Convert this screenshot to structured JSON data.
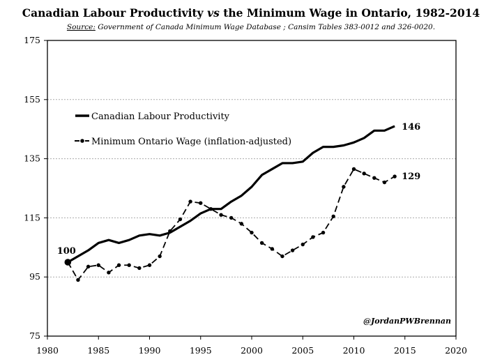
{
  "chart_data": {
    "type": "line",
    "title_parts": {
      "a": "Canadian Labour Productivity ",
      "vs": "vs",
      "b": " the Minimum Wage in Ontario, 1982-2014"
    },
    "subtitle_parts": {
      "source_label": "Source:",
      "text": " Government of Canada Minimum Wage Database ; Cansim Tables  383-0012 and  326-0020."
    },
    "xlim": [
      1980,
      2020
    ],
    "ylim": [
      75,
      175
    ],
    "x_ticks": [
      1980,
      1985,
      1990,
      1995,
      2000,
      2005,
      2010,
      2015,
      2020
    ],
    "y_ticks": [
      75,
      95,
      115,
      135,
      155,
      175
    ],
    "grid": "horizontal-dashed",
    "legend_placement": "upper-left",
    "series": [
      {
        "name": "Canadian Labour Productivity",
        "style": "solid",
        "color": "#000000",
        "x": [
          1982,
          1983,
          1984,
          1985,
          1986,
          1987,
          1988,
          1989,
          1990,
          1991,
          1992,
          1993,
          1994,
          1995,
          1996,
          1997,
          1998,
          1999,
          2000,
          2001,
          2002,
          2003,
          2004,
          2005,
          2006,
          2007,
          2008,
          2009,
          2010,
          2011,
          2012,
          2013,
          2014
        ],
        "values": [
          100,
          102,
          104,
          106.5,
          107.5,
          106.5,
          107.5,
          109,
          109.5,
          109,
          110,
          112,
          114,
          116.5,
          118,
          118,
          120.5,
          122.5,
          125.5,
          129.5,
          131.5,
          133.5,
          133.5,
          134,
          137,
          139,
          139,
          139.5,
          140.5,
          142,
          144.5,
          144.5,
          146
        ]
      },
      {
        "name": "Minimum Ontario Wage (inflation-adjusted)",
        "style": "dashed-markers",
        "color": "#000000",
        "x": [
          1982,
          1983,
          1984,
          1985,
          1986,
          1987,
          1988,
          1989,
          1990,
          1991,
          1992,
          1993,
          1994,
          1995,
          1996,
          1997,
          1998,
          1999,
          2000,
          2001,
          2002,
          2003,
          2004,
          2005,
          2006,
          2007,
          2008,
          2009,
          2010,
          2011,
          2012,
          2013,
          2014
        ],
        "values": [
          100,
          94,
          98.5,
          99,
          96.5,
          99,
          99,
          98,
          99,
          102,
          110.5,
          114.5,
          120.5,
          120,
          118,
          116,
          115,
          113,
          110,
          106.5,
          104.5,
          102,
          104,
          106,
          108.5,
          110,
          115.5,
          125.5,
          131.5,
          130,
          128.5,
          127,
          129
        ]
      }
    ],
    "annotations": {
      "start": "100",
      "end_productivity": "146",
      "end_wage": "129"
    },
    "credit": "@JordanPWBrennan"
  }
}
